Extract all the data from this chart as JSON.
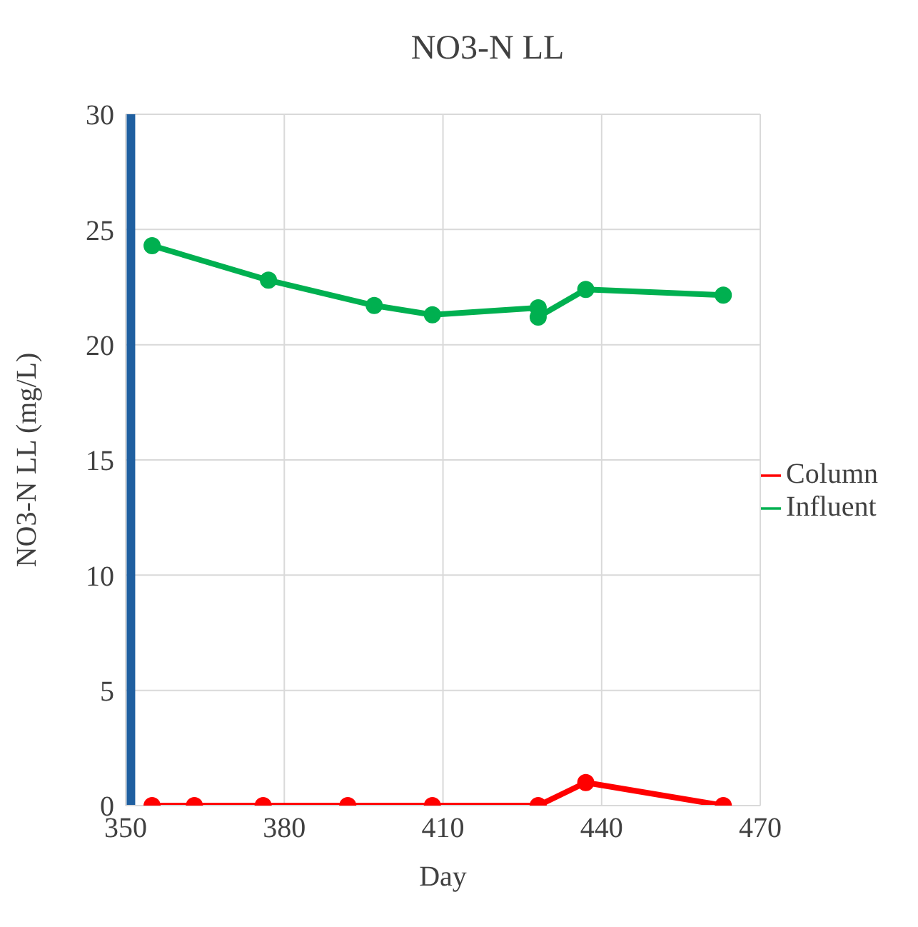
{
  "chart_data": {
    "type": "line",
    "title": "NO3-N LL",
    "xlabel": "Day",
    "ylabel": "NO3-N LL (mg/L)",
    "xlim": [
      350,
      470
    ],
    "xticks": [
      350,
      380,
      410,
      440,
      470
    ],
    "ylim": [
      0,
      30
    ],
    "yticks": [
      0,
      5,
      10,
      15,
      20,
      25,
      30
    ],
    "series": [
      {
        "name": "Column",
        "color": "#ff0000",
        "x": [
          355,
          363,
          376,
          392,
          408,
          428,
          437,
          463
        ],
        "values": [
          0,
          0,
          0,
          0,
          0,
          0,
          1.0,
          0
        ]
      },
      {
        "name": "Influent",
        "color": "#00b050",
        "x": [
          355,
          377,
          397,
          408,
          428,
          428,
          437,
          463
        ],
        "values": [
          24.3,
          22.8,
          21.7,
          21.3,
          21.6,
          21.2,
          22.4,
          22.15
        ]
      }
    ],
    "ref_lines": [
      {
        "axis": "x",
        "value": 351,
        "color": "#1f5fa0"
      }
    ],
    "grid": true,
    "legend": "right",
    "marker": "circle",
    "line_style": "solid"
  }
}
